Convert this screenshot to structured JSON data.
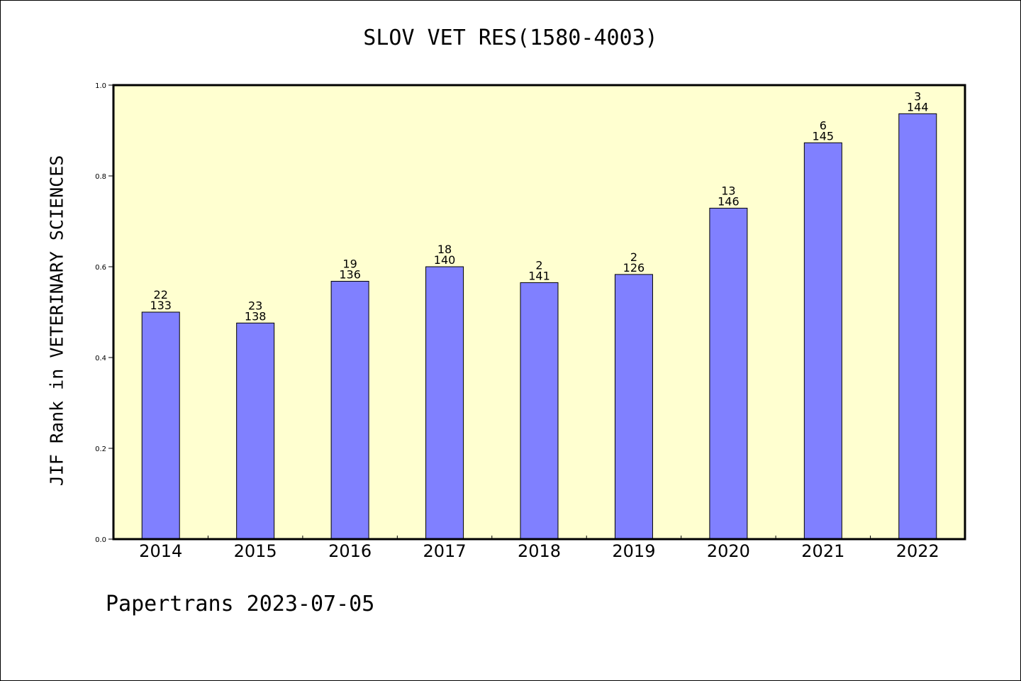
{
  "title": "SLOV VET RES(1580-4003)",
  "ylabel": "JIF Rank in VETERINARY SCIENCES",
  "footer": "Papertrans 2023-07-05",
  "colors": {
    "plot_bg": "#ffffd0",
    "bar": "#8080ff",
    "axis": "#000000"
  },
  "chart_data": {
    "type": "bar",
    "title": "SLOV VET RES(1580-4003)",
    "xlabel": "",
    "ylabel": "JIF Rank in VETERINARY SCIENCES",
    "ylim": [
      0,
      1.0
    ],
    "yticks": [
      "0.0",
      "0.2",
      "0.4",
      "0.6",
      "0.8",
      "1.0"
    ],
    "grid": false,
    "categories": [
      "2014",
      "2015",
      "2016",
      "2017",
      "2018",
      "2019",
      "2020",
      "2021",
      "2022"
    ],
    "values": [
      0.5,
      0.476,
      0.568,
      0.6,
      0.565,
      0.583,
      0.729,
      0.873,
      0.937
    ],
    "rank": [
      "22",
      "23",
      "19",
      "18",
      "2",
      "2",
      "13",
      "6",
      "3"
    ],
    "total": [
      "133",
      "138",
      "136",
      "140",
      "141",
      "126",
      "146",
      "145",
      "144"
    ]
  }
}
